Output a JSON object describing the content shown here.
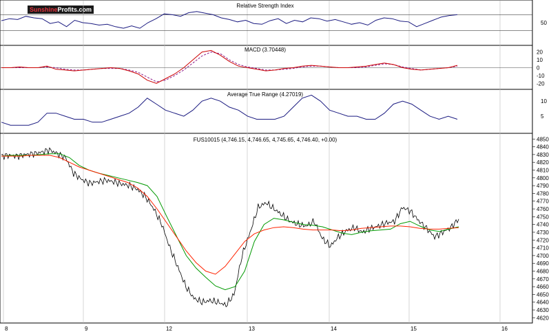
{
  "logo": {
    "part1": "Sunshine",
    "part2": "Profits.com"
  },
  "colors": {
    "price": "#000000",
    "rsi": "#1a1a80",
    "macd": "#cc0000",
    "signal": "#8b1a8b",
    "atr": "#1a1a80",
    "ma_fast": "#009900",
    "ma_slow": "#ff2200",
    "grid": "#bbbbbb"
  },
  "chart_data": [
    {
      "type": "line",
      "title": "Relative Strength Index",
      "y_ticks": [
        "50"
      ],
      "reference_levels": [
        70,
        30
      ],
      "ylim": [
        0,
        100
      ],
      "series": [
        {
          "values": [
            55,
            60,
            58,
            66,
            62,
            60,
            48,
            52,
            40,
            56,
            50,
            48,
            44,
            46,
            40,
            36,
            42,
            36,
            50,
            60,
            72,
            70,
            66,
            75,
            78,
            74,
            70,
            62,
            58,
            52,
            56,
            48,
            46,
            55,
            60,
            48,
            56,
            52,
            62,
            60,
            54,
            58,
            52,
            46,
            50,
            44,
            56,
            62,
            60,
            54,
            52,
            40,
            48,
            56,
            64,
            68,
            70
          ]
        }
      ]
    },
    {
      "type": "line",
      "title": "MACD (3.70448)",
      "y_ticks": [
        "20",
        "10",
        "0",
        "-10",
        "-20"
      ],
      "ylim": [
        -25,
        25
      ],
      "series": [
        {
          "values": [
            0,
            0,
            1,
            0,
            0,
            2,
            -2,
            -3,
            -4,
            -3,
            -2,
            -1,
            0,
            -1,
            -4,
            -8,
            -16,
            -20,
            -14,
            -8,
            0,
            10,
            20,
            22,
            16,
            8,
            2,
            0,
            -2,
            -4,
            -3,
            -1,
            0,
            2,
            3,
            2,
            1,
            0,
            0,
            1,
            2,
            4,
            6,
            4,
            0,
            -2,
            -3,
            -2,
            -1,
            0,
            3
          ]
        },
        {
          "values": [
            0,
            0,
            0,
            0,
            0,
            1,
            0,
            -2,
            -3,
            -3,
            -2,
            -1,
            -1,
            -1,
            -3,
            -6,
            -12,
            -18,
            -16,
            -10,
            -3,
            6,
            15,
            20,
            18,
            10,
            4,
            1,
            -1,
            -3,
            -3,
            -2,
            -1,
            1,
            2,
            2,
            1,
            0,
            0,
            0,
            1,
            3,
            5,
            4,
            1,
            -1,
            -3,
            -2,
            -1,
            0,
            2
          ]
        }
      ]
    },
    {
      "type": "line",
      "title": "Average True Range (4.27019)",
      "y_ticks": [
        "10",
        "5"
      ],
      "ylim": [
        0,
        13
      ],
      "series": [
        {
          "values": [
            3,
            2,
            2,
            2,
            3,
            6,
            6,
            5,
            4,
            4,
            3,
            3,
            4,
            5,
            6,
            8,
            11,
            9,
            7,
            6,
            5,
            7,
            10,
            11,
            10,
            8,
            7,
            5,
            4,
            4,
            4,
            5,
            8,
            11,
            12,
            10,
            7,
            6,
            5,
            5,
            4,
            4,
            6,
            9,
            10,
            9,
            7,
            5,
            4,
            5,
            4
          ]
        }
      ]
    },
    {
      "type": "line",
      "title": "FUS10015 (4,746.15, 4,746.65, 4,745.65, 4,746.40, +0.00)",
      "y_ticks": [
        "4850",
        "4840",
        "4830",
        "4820",
        "4810",
        "4800",
        "4790",
        "4780",
        "4770",
        "4760",
        "4750",
        "4740",
        "4730",
        "4720",
        "4710",
        "4700",
        "4690",
        "4680",
        "4670",
        "4660",
        "4650",
        "4640",
        "4630",
        "4620"
      ],
      "ylim": [
        4615,
        4852
      ],
      "x_tick_labels": [
        "8",
        "9",
        "12",
        "13",
        "14",
        "15",
        "16"
      ],
      "series": [
        {
          "values": [
            4828,
            4829,
            4828,
            4830,
            4831,
            4833,
            4836,
            4831,
            4826,
            4806,
            4798,
            4793,
            4795,
            4797,
            4795,
            4792,
            4790,
            4785,
            4775,
            4760,
            4740,
            4710,
            4685,
            4660,
            4645,
            4640,
            4642,
            4640,
            4636,
            4650,
            4700,
            4730,
            4762,
            4768,
            4760,
            4752,
            4744,
            4740,
            4738,
            4744,
            4722,
            4712,
            4724,
            4732,
            4736,
            4730,
            4735,
            4738,
            4742,
            4744,
            4762,
            4757,
            4745,
            4735,
            4724,
            4730,
            4736,
            4747
          ]
        },
        {
          "values": [
            4828,
            4829,
            4829,
            4829,
            4830,
            4831,
            4831,
            4826,
            4816,
            4810,
            4806,
            4803,
            4800,
            4797,
            4794,
            4790,
            4776,
            4750,
            4725,
            4700,
            4684,
            4672,
            4661,
            4656,
            4660,
            4680,
            4718,
            4740,
            4748,
            4746,
            4743,
            4740,
            4739,
            4737,
            4733,
            4729,
            4727,
            4730,
            4732,
            4733,
            4734,
            4741,
            4744,
            4738,
            4733,
            4731,
            4734,
            4737
          ]
        },
        {
          "values": [
            4828,
            4828,
            4828,
            4829,
            4829,
            4829,
            4826,
            4820,
            4814,
            4810,
            4806,
            4802,
            4798,
            4794,
            4787,
            4776,
            4760,
            4742,
            4724,
            4706,
            4691,
            4680,
            4676,
            4686,
            4702,
            4718,
            4728,
            4733,
            4736,
            4737,
            4736,
            4734,
            4733,
            4733,
            4733,
            4732,
            4733,
            4735,
            4736,
            4737,
            4738,
            4738,
            4737,
            4735,
            4734,
            4734,
            4735,
            4736
          ]
        }
      ]
    }
  ]
}
